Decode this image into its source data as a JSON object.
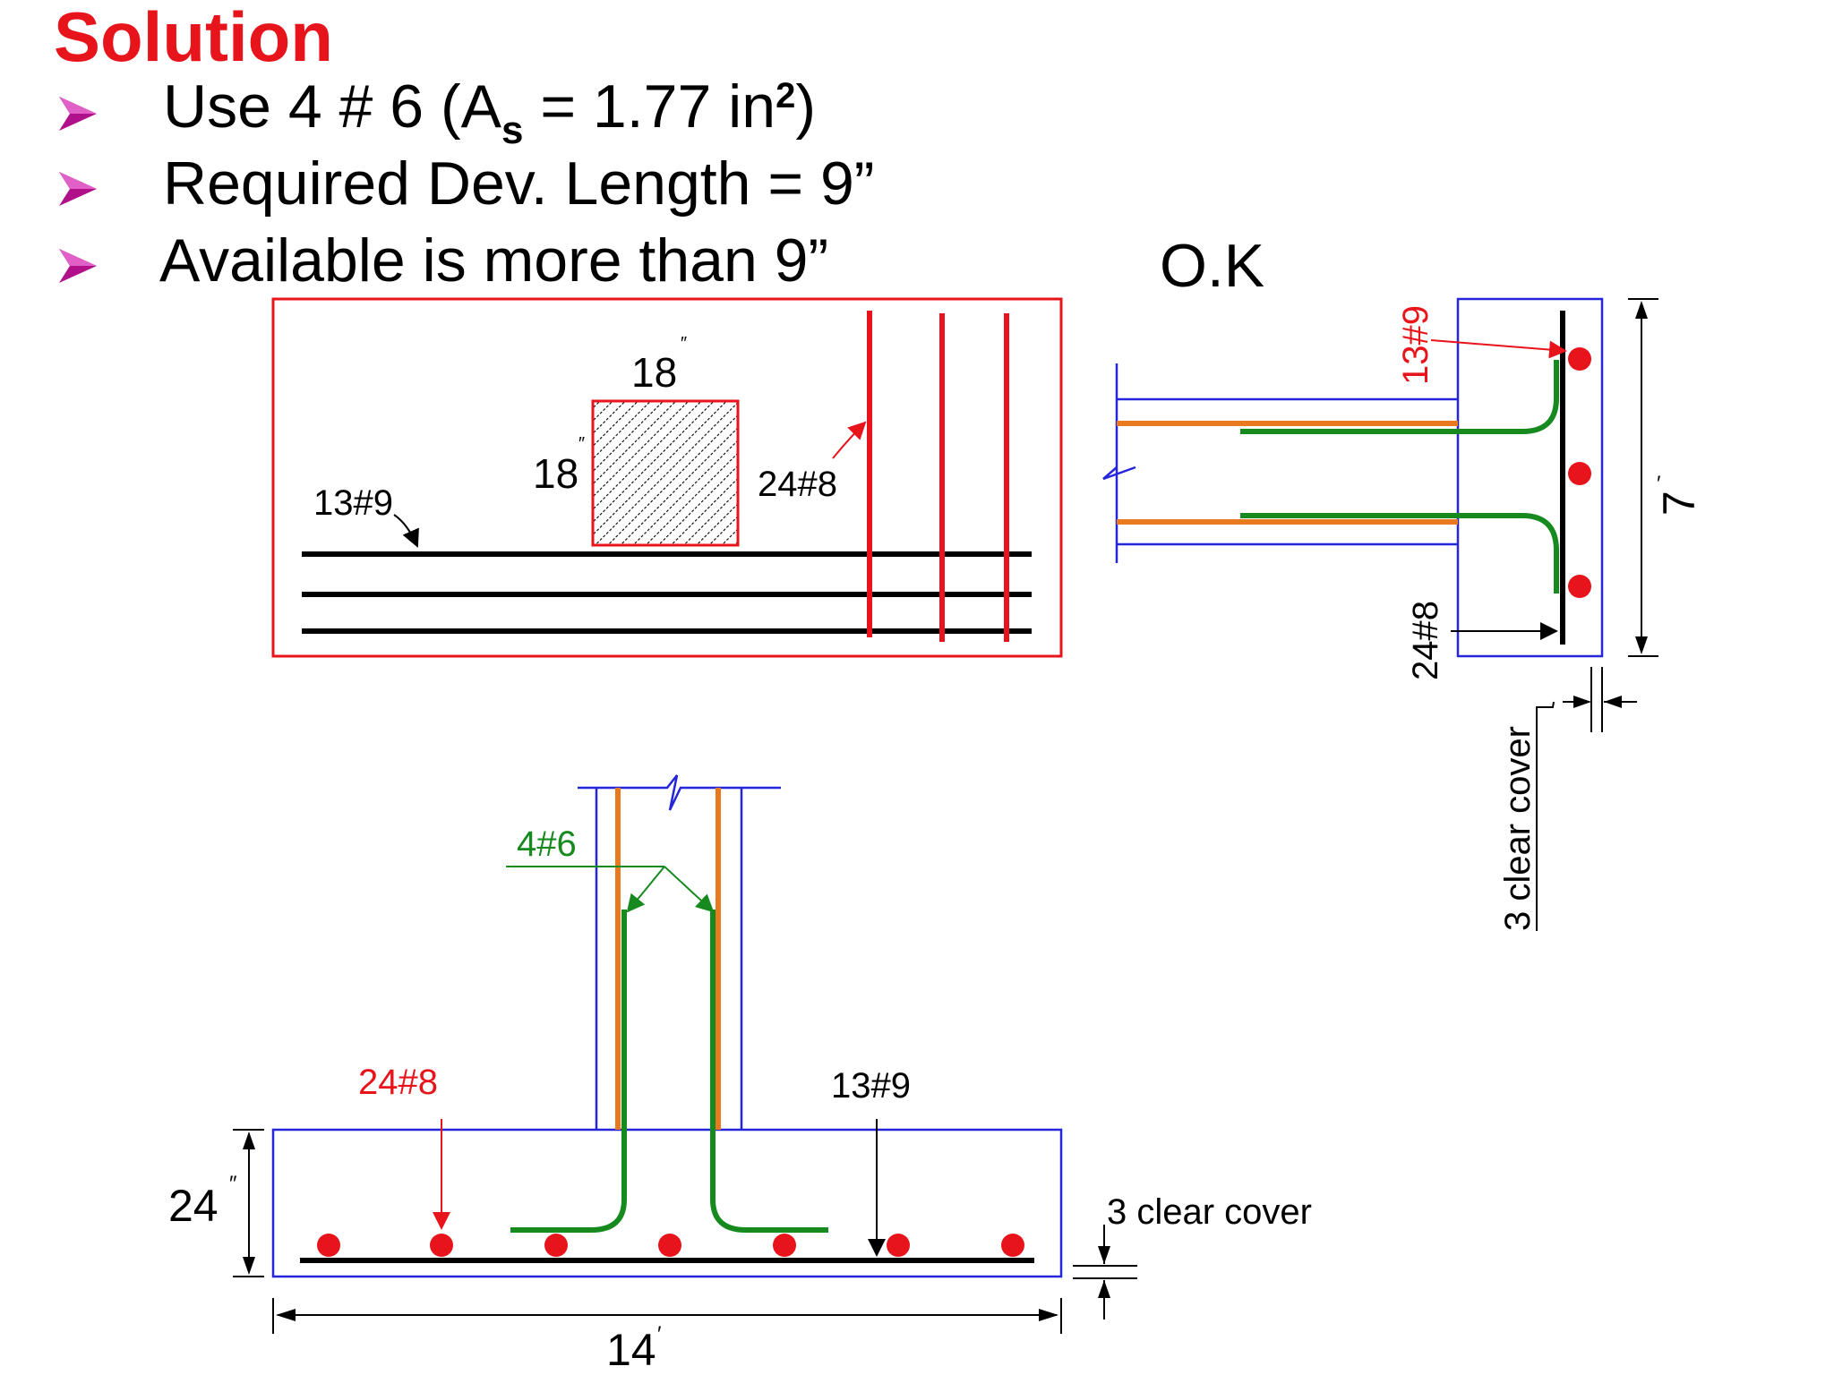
{
  "heading": "Solution",
  "bullets": {
    "b1_prefix": "Use 4 # 6 (A",
    "b1_sub": "s",
    "b1_mid": " = 1.77 in",
    "b1_sup": "2",
    "b1_end": ")",
    "b2": "Required Dev. Length = 9”",
    "b3": "Available is more than 9”"
  },
  "status": "O.K",
  "plan": {
    "col_width": "18",
    "col_depth": "18",
    "bar_long": "13#9",
    "bar_short": "24#8"
  },
  "side_section": {
    "bar_top": "13#9",
    "bar_bottom": "24#8",
    "depth": "7",
    "cover": "3 clear cover"
  },
  "front_section": {
    "dowel_bars": "4#6",
    "bar_red": "24#8",
    "bar_black": "13#9",
    "thickness": "24",
    "width": "14",
    "cover": "3 clear cover"
  },
  "colors": {
    "red": "#e8141b",
    "green": "#16891f",
    "orange": "#e8791e",
    "blue": "#2525d9",
    "magenta": "#b0108a"
  }
}
